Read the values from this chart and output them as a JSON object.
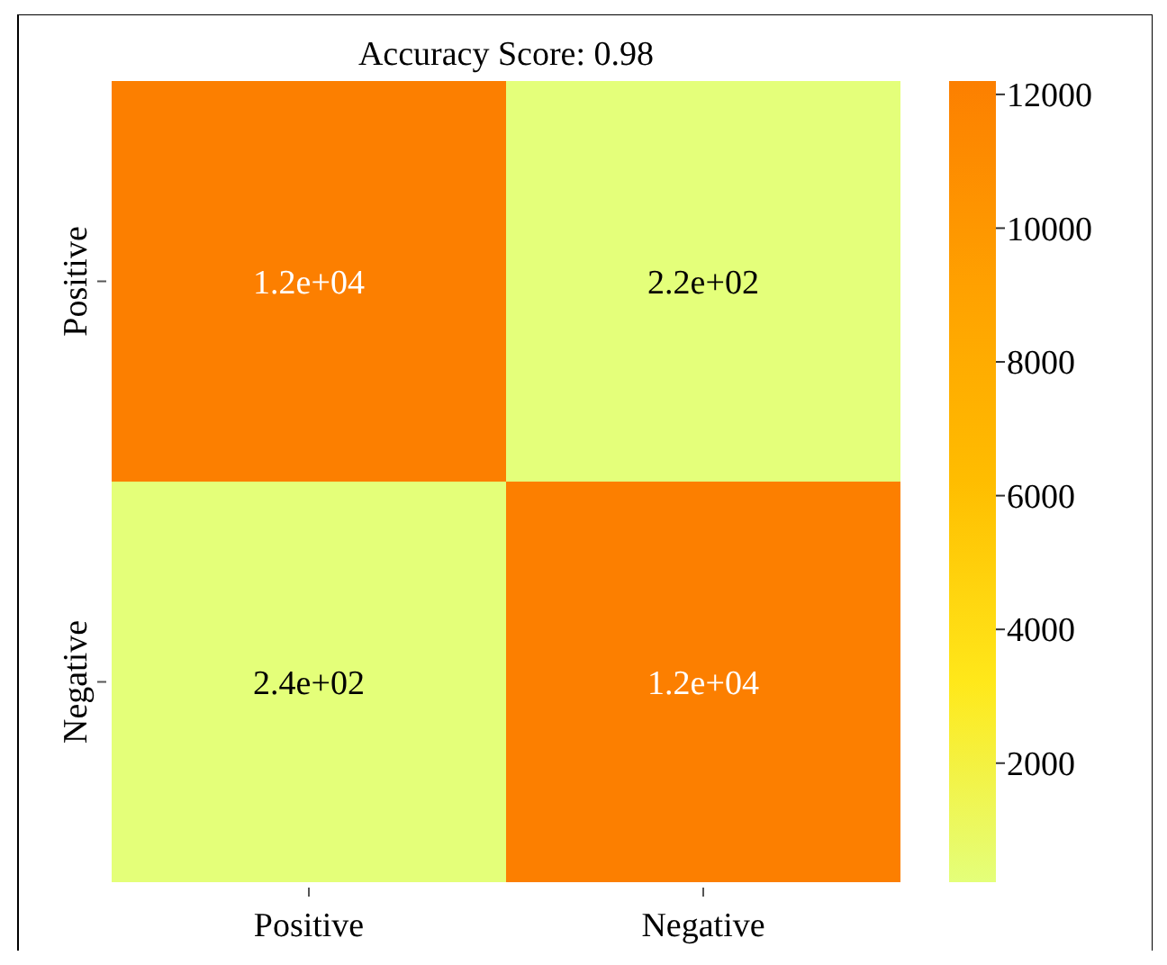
{
  "chart_data": {
    "type": "heatmap",
    "title": "Accuracy Score: 0.98",
    "categories": [
      "Positive",
      "Negative"
    ],
    "y_categories": [
      "Positive",
      "Negative"
    ],
    "cells": [
      [
        12200,
        220
      ],
      [
        240,
        12200
      ]
    ],
    "cell_labels": [
      [
        "1.2e+04",
        "2.2e+02"
      ],
      [
        "2.4e+02",
        "1.2e+04"
      ]
    ],
    "clim": [
      220,
      12200
    ],
    "cticks": [
      2000,
      4000,
      6000,
      8000,
      10000,
      12000
    ]
  }
}
